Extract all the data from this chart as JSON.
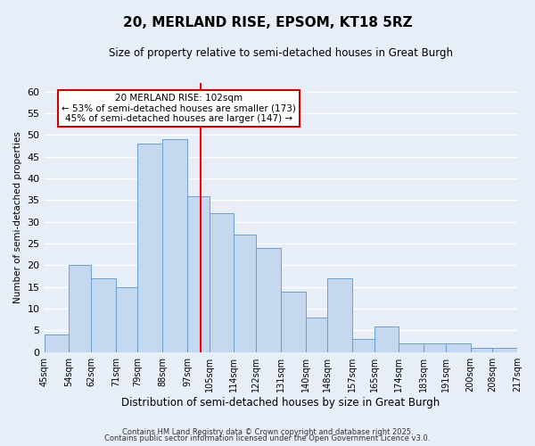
{
  "title": "20, MERLAND RISE, EPSOM, KT18 5RZ",
  "subtitle": "Size of property relative to semi-detached houses in Great Burgh",
  "xlabel": "Distribution of semi-detached houses by size in Great Burgh",
  "ylabel": "Number of semi-detached properties",
  "bin_edges": [
    45,
    54,
    62,
    71,
    79,
    88,
    97,
    105,
    114,
    122,
    131,
    140,
    148,
    157,
    165,
    174,
    183,
    191,
    200,
    208,
    217
  ],
  "bar_heights": [
    4,
    20,
    17,
    15,
    48,
    49,
    36,
    32,
    27,
    24,
    14,
    8,
    17,
    3,
    6,
    2,
    2,
    2,
    1,
    1
  ],
  "bar_color": "#c5d8f0",
  "bar_edge_color": "#6a9fd0",
  "background_color": "#e8eef8",
  "grid_color": "#ffffff",
  "red_line_x": 102,
  "ylim": [
    0,
    62
  ],
  "yticks": [
    0,
    5,
    10,
    15,
    20,
    25,
    30,
    35,
    40,
    45,
    50,
    55,
    60
  ],
  "annotation_title": "20 MERLAND RISE: 102sqm",
  "annotation_line1": "← 53% of semi-detached houses are smaller (173)",
  "annotation_line2": "45% of semi-detached houses are larger (147) →",
  "annotation_box_color": "#ffffff",
  "annotation_box_edge": "#cc0000",
  "footnote1": "Contains HM Land Registry data © Crown copyright and database right 2025.",
  "footnote2": "Contains public sector information licensed under the Open Government Licence v3.0.",
  "tick_labels": [
    "45sqm",
    "54sqm",
    "62sqm",
    "71sqm",
    "79sqm",
    "88sqm",
    "97sqm",
    "105sqm",
    "114sqm",
    "122sqm",
    "131sqm",
    "140sqm",
    "148sqm",
    "157sqm",
    "165sqm",
    "174sqm",
    "183sqm",
    "191sqm",
    "200sqm",
    "208sqm",
    "217sqm"
  ]
}
